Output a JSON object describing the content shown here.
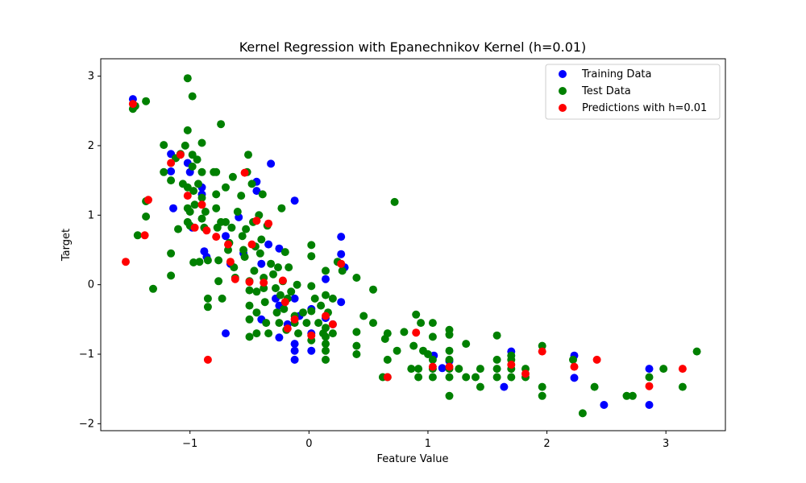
{
  "chart_data": {
    "type": "scatter",
    "title": "Kernel Regression with Epanechnikov Kernel (h=0.01)",
    "xlabel": "Feature Value",
    "ylabel": "Target",
    "xlim": [
      -1.75,
      3.5
    ],
    "ylim": [
      -2.1,
      3.25
    ],
    "xticks": [
      -1,
      0,
      1,
      2,
      3
    ],
    "yticks": [
      -2,
      -1,
      0,
      1,
      2,
      3
    ],
    "grid": false,
    "legend_position": "top-right",
    "series": [
      {
        "name": "Training Data",
        "color": "#0000ff",
        "points": [
          [
            -1.48,
            2.67
          ],
          [
            -1.16,
            1.88
          ],
          [
            -1.16,
            1.63
          ],
          [
            -1.14,
            1.1
          ],
          [
            -1.02,
            1.75
          ],
          [
            -1.0,
            1.62
          ],
          [
            -0.98,
            0.82
          ],
          [
            -0.9,
            1.3
          ],
          [
            -0.9,
            1.4
          ],
          [
            -0.88,
            0.48
          ],
          [
            -0.86,
            0.4
          ],
          [
            -0.7,
            0.7
          ],
          [
            -0.7,
            -0.7
          ],
          [
            -0.66,
            0.3
          ],
          [
            -0.59,
            0.97
          ],
          [
            -0.55,
            0.45
          ],
          [
            -0.44,
            1.48
          ],
          [
            -0.44,
            1.35
          ],
          [
            -0.4,
            0.3
          ],
          [
            -0.4,
            -0.5
          ],
          [
            -0.34,
            0.58
          ],
          [
            -0.32,
            1.74
          ],
          [
            -0.28,
            -0.2
          ],
          [
            -0.25,
            0.52
          ],
          [
            -0.25,
            -0.76
          ],
          [
            -0.25,
            -0.3
          ],
          [
            -0.18,
            -0.57
          ],
          [
            -0.12,
            1.21
          ],
          [
            -0.12,
            -0.85
          ],
          [
            -0.12,
            -0.95
          ],
          [
            -0.12,
            -1.08
          ],
          [
            -0.12,
            -0.2
          ],
          [
            -0.08,
            -0.45
          ],
          [
            0.02,
            -0.95
          ],
          [
            0.02,
            -0.7
          ],
          [
            0.02,
            -0.35
          ],
          [
            0.14,
            0.08
          ],
          [
            0.14,
            -0.48
          ],
          [
            0.2,
            -0.57
          ],
          [
            0.27,
            0.69
          ],
          [
            0.27,
            0.44
          ],
          [
            0.27,
            -0.25
          ],
          [
            0.3,
            0.25
          ],
          [
            1.05,
            -1.02
          ],
          [
            1.12,
            -1.2
          ],
          [
            1.18,
            -1.1
          ],
          [
            1.64,
            -1.47
          ],
          [
            1.7,
            -0.96
          ],
          [
            2.23,
            -1.02
          ],
          [
            2.23,
            -1.34
          ],
          [
            2.48,
            -1.73
          ],
          [
            2.86,
            -1.21
          ],
          [
            2.86,
            -1.73
          ]
        ]
      },
      {
        "name": "Test Data",
        "color": "#008000",
        "points": [
          [
            -1.48,
            2.53
          ],
          [
            -1.46,
            2.57
          ],
          [
            -1.44,
            0.71
          ],
          [
            -1.37,
            2.64
          ],
          [
            -1.37,
            0.98
          ],
          [
            -1.37,
            1.2
          ],
          [
            -1.31,
            -0.06
          ],
          [
            -1.22,
            2.01
          ],
          [
            -1.22,
            1.62
          ],
          [
            -1.16,
            0.45
          ],
          [
            -1.16,
            0.13
          ],
          [
            -1.16,
            1.5
          ],
          [
            -1.12,
            1.82
          ],
          [
            -1.1,
            0.8
          ],
          [
            -1.08,
            1.88
          ],
          [
            -1.06,
            1.45
          ],
          [
            -1.04,
            2.0
          ],
          [
            -1.02,
            2.97
          ],
          [
            -1.02,
            2.22
          ],
          [
            -1.02,
            1.4
          ],
          [
            -1.02,
            1.1
          ],
          [
            -1.02,
            0.9
          ],
          [
            -1.0,
            1.05
          ],
          [
            -1.0,
            0.85
          ],
          [
            -0.98,
            2.71
          ],
          [
            -0.98,
            1.87
          ],
          [
            -0.98,
            1.7
          ],
          [
            -0.97,
            1.35
          ],
          [
            -0.97,
            0.32
          ],
          [
            -0.96,
            1.15
          ],
          [
            -0.94,
            1.8
          ],
          [
            -0.93,
            1.45
          ],
          [
            -0.92,
            0.33
          ],
          [
            -0.9,
            2.04
          ],
          [
            -0.9,
            1.62
          ],
          [
            -0.9,
            1.25
          ],
          [
            -0.9,
            0.95
          ],
          [
            -0.88,
            0.82
          ],
          [
            -0.87,
            1.05
          ],
          [
            -0.85,
            0.35
          ],
          [
            -0.85,
            -0.2
          ],
          [
            -0.85,
            -0.32
          ],
          [
            -0.8,
            1.62
          ],
          [
            -0.78,
            1.62
          ],
          [
            -0.78,
            1.3
          ],
          [
            -0.78,
            1.1
          ],
          [
            -0.77,
            0.82
          ],
          [
            -0.76,
            0.35
          ],
          [
            -0.76,
            0.05
          ],
          [
            -0.74,
            2.31
          ],
          [
            -0.74,
            0.9
          ],
          [
            -0.73,
            -0.2
          ],
          [
            -0.7,
            1.4
          ],
          [
            -0.7,
            0.9
          ],
          [
            -0.68,
            0.5
          ],
          [
            -0.67,
            0.6
          ],
          [
            -0.65,
            0.82
          ],
          [
            -0.64,
            1.55
          ],
          [
            -0.63,
            0.25
          ],
          [
            -0.62,
            0.1
          ],
          [
            -0.6,
            1.05
          ],
          [
            -0.57,
            1.28
          ],
          [
            -0.56,
            0.7
          ],
          [
            -0.55,
            0.5
          ],
          [
            -0.54,
            0.4
          ],
          [
            -0.53,
            0.8
          ],
          [
            -0.52,
            1.62
          ],
          [
            -0.51,
            1.87
          ],
          [
            -0.5,
            0.05
          ],
          [
            -0.5,
            -0.08
          ],
          [
            -0.5,
            -0.3
          ],
          [
            -0.5,
            -0.5
          ],
          [
            -0.5,
            -0.75
          ],
          [
            -0.48,
            1.45
          ],
          [
            -0.47,
            0.9
          ],
          [
            -0.46,
            0.2
          ],
          [
            -0.45,
            0.55
          ],
          [
            -0.44,
            -0.1
          ],
          [
            -0.44,
            -0.4
          ],
          [
            -0.44,
            -0.7
          ],
          [
            -0.42,
            1.0
          ],
          [
            -0.41,
            0.45
          ],
          [
            -0.4,
            0.65
          ],
          [
            -0.39,
            1.3
          ],
          [
            -0.38,
            0.1
          ],
          [
            -0.38,
            -0.05
          ],
          [
            -0.37,
            -0.25
          ],
          [
            -0.36,
            -0.55
          ],
          [
            -0.35,
            0.85
          ],
          [
            -0.34,
            -0.7
          ],
          [
            -0.32,
            0.3
          ],
          [
            -0.3,
            0.15
          ],
          [
            -0.28,
            -0.05
          ],
          [
            -0.27,
            -0.4
          ],
          [
            -0.26,
            0.25
          ],
          [
            -0.25,
            -0.55
          ],
          [
            -0.24,
            -0.15
          ],
          [
            -0.23,
            1.1
          ],
          [
            -0.22,
            0.05
          ],
          [
            -0.21,
            -0.35
          ],
          [
            -0.2,
            0.47
          ],
          [
            -0.19,
            -0.65
          ],
          [
            -0.18,
            -0.2
          ],
          [
            -0.17,
            0.25
          ],
          [
            -0.15,
            -0.1
          ],
          [
            -0.12,
            -0.45
          ],
          [
            -0.12,
            -0.55
          ],
          [
            -0.1,
            0.0
          ],
          [
            -0.09,
            -0.7
          ],
          [
            -0.05,
            -0.4
          ],
          [
            -0.02,
            -0.55
          ],
          [
            0.02,
            0.57
          ],
          [
            0.02,
            0.41
          ],
          [
            0.02,
            -0.02
          ],
          [
            0.02,
            -0.38
          ],
          [
            0.02,
            -0.8
          ],
          [
            0.05,
            -0.2
          ],
          [
            0.08,
            -0.55
          ],
          [
            0.1,
            -0.3
          ],
          [
            0.12,
            -0.7
          ],
          [
            0.14,
            0.2
          ],
          [
            0.14,
            -0.15
          ],
          [
            0.14,
            -0.62
          ],
          [
            0.14,
            -0.75
          ],
          [
            0.14,
            -0.85
          ],
          [
            0.14,
            -0.95
          ],
          [
            0.14,
            -1.08
          ],
          [
            0.16,
            -0.4
          ],
          [
            0.2,
            -0.2
          ],
          [
            0.2,
            -0.7
          ],
          [
            0.24,
            0.33
          ],
          [
            0.28,
            0.2
          ],
          [
            0.4,
            -0.68
          ],
          [
            0.4,
            -0.88
          ],
          [
            0.4,
            -1.0
          ],
          [
            0.4,
            0.1
          ],
          [
            0.46,
            -0.45
          ],
          [
            0.54,
            -0.55
          ],
          [
            0.54,
            -0.07
          ],
          [
            0.62,
            -1.33
          ],
          [
            0.64,
            -0.78
          ],
          [
            0.66,
            -0.7
          ],
          [
            0.66,
            -1.08
          ],
          [
            0.66,
            -1.33
          ],
          [
            0.72,
            1.19
          ],
          [
            0.74,
            -0.95
          ],
          [
            0.8,
            -0.68
          ],
          [
            0.86,
            -1.21
          ],
          [
            0.88,
            -0.88
          ],
          [
            0.9,
            -0.43
          ],
          [
            0.92,
            -1.21
          ],
          [
            0.92,
            -1.33
          ],
          [
            0.94,
            -0.55
          ],
          [
            0.96,
            -0.95
          ],
          [
            1.0,
            -1.0
          ],
          [
            1.04,
            -0.55
          ],
          [
            1.04,
            -0.75
          ],
          [
            1.04,
            -1.08
          ],
          [
            1.04,
            -1.21
          ],
          [
            1.04,
            -1.33
          ],
          [
            1.18,
            -0.65
          ],
          [
            1.18,
            -0.72
          ],
          [
            1.18,
            -0.95
          ],
          [
            1.18,
            -1.08
          ],
          [
            1.18,
            -1.21
          ],
          [
            1.18,
            -1.33
          ],
          [
            1.18,
            -1.6
          ],
          [
            1.26,
            -1.21
          ],
          [
            1.32,
            -0.85
          ],
          [
            1.32,
            -1.33
          ],
          [
            1.4,
            -1.33
          ],
          [
            1.44,
            -1.21
          ],
          [
            1.44,
            -1.47
          ],
          [
            1.58,
            -0.73
          ],
          [
            1.58,
            -1.08
          ],
          [
            1.58,
            -1.21
          ],
          [
            1.58,
            -1.33
          ],
          [
            1.7,
            -1.02
          ],
          [
            1.7,
            -1.08
          ],
          [
            1.7,
            -1.21
          ],
          [
            1.7,
            -1.33
          ],
          [
            1.82,
            -1.21
          ],
          [
            1.82,
            -1.33
          ],
          [
            1.96,
            -0.88
          ],
          [
            1.96,
            -1.47
          ],
          [
            1.96,
            -1.6
          ],
          [
            2.22,
            -1.08
          ],
          [
            2.3,
            -1.85
          ],
          [
            2.4,
            -1.47
          ],
          [
            2.67,
            -1.6
          ],
          [
            2.72,
            -1.6
          ],
          [
            2.86,
            -1.33
          ],
          [
            2.98,
            -1.21
          ],
          [
            3.14,
            -1.47
          ],
          [
            3.26,
            -0.96
          ]
        ]
      },
      {
        "name": "Predictions with h=0.01",
        "color": "#ff0000",
        "points": [
          [
            -1.54,
            0.33
          ],
          [
            -1.48,
            2.6
          ],
          [
            -1.38,
            0.71
          ],
          [
            -1.35,
            1.22
          ],
          [
            -1.16,
            1.75
          ],
          [
            -1.08,
            1.87
          ],
          [
            -1.02,
            1.28
          ],
          [
            -0.96,
            0.82
          ],
          [
            -0.9,
            1.15
          ],
          [
            -0.86,
            0.78
          ],
          [
            -0.85,
            -1.08
          ],
          [
            -0.78,
            0.69
          ],
          [
            -0.68,
            0.58
          ],
          [
            -0.66,
            0.33
          ],
          [
            -0.62,
            0.08
          ],
          [
            -0.54,
            1.61
          ],
          [
            -0.5,
            0.04
          ],
          [
            -0.48,
            0.58
          ],
          [
            -0.44,
            0.92
          ],
          [
            -0.38,
            0.03
          ],
          [
            -0.34,
            0.88
          ],
          [
            -0.22,
            0.06
          ],
          [
            -0.2,
            -0.25
          ],
          [
            -0.18,
            -0.63
          ],
          [
            -0.12,
            -0.5
          ],
          [
            0.02,
            -0.73
          ],
          [
            0.14,
            -0.45
          ],
          [
            0.2,
            -0.57
          ],
          [
            0.27,
            0.3
          ],
          [
            0.66,
            -1.33
          ],
          [
            0.9,
            -0.69
          ],
          [
            1.04,
            -1.18
          ],
          [
            1.18,
            -1.18
          ],
          [
            1.7,
            -1.15
          ],
          [
            1.82,
            -1.28
          ],
          [
            1.96,
            -0.96
          ],
          [
            2.23,
            -1.18
          ],
          [
            2.42,
            -1.08
          ],
          [
            2.86,
            -1.46
          ],
          [
            3.14,
            -1.21
          ]
        ]
      }
    ]
  }
}
